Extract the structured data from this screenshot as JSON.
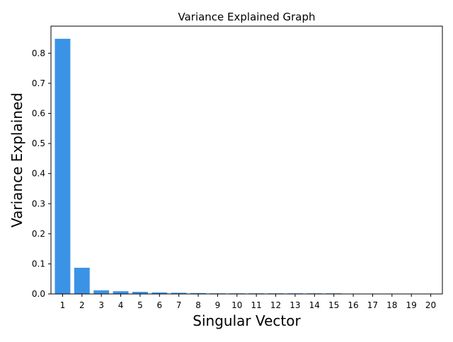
{
  "chart_data": {
    "type": "bar",
    "title": "Variance Explained Graph",
    "xlabel": "Singular Vector",
    "ylabel": "Variance Explained",
    "categories": [
      "1",
      "2",
      "3",
      "4",
      "5",
      "6",
      "7",
      "8",
      "9",
      "10",
      "11",
      "12",
      "13",
      "14",
      "15",
      "16",
      "17",
      "18",
      "19",
      "20"
    ],
    "values": [
      0.848,
      0.087,
      0.012,
      0.009,
      0.007,
      0.005,
      0.004,
      0.003,
      0.002,
      0.002,
      0.002,
      0.002,
      0.002,
      0.002,
      0.002,
      0.001,
      0.001,
      0.001,
      0.001,
      0.001
    ],
    "ylim": [
      0,
      0.89
    ],
    "yticks": [
      0.0,
      0.1,
      0.2,
      0.3,
      0.4,
      0.5,
      0.6,
      0.7,
      0.8
    ],
    "ytick_labels": [
      "0.0",
      "0.1",
      "0.2",
      "0.3",
      "0.4",
      "0.5",
      "0.6",
      "0.7",
      "0.8"
    ],
    "bar_color": "#3b93e6",
    "grid": false,
    "legend": "none"
  }
}
